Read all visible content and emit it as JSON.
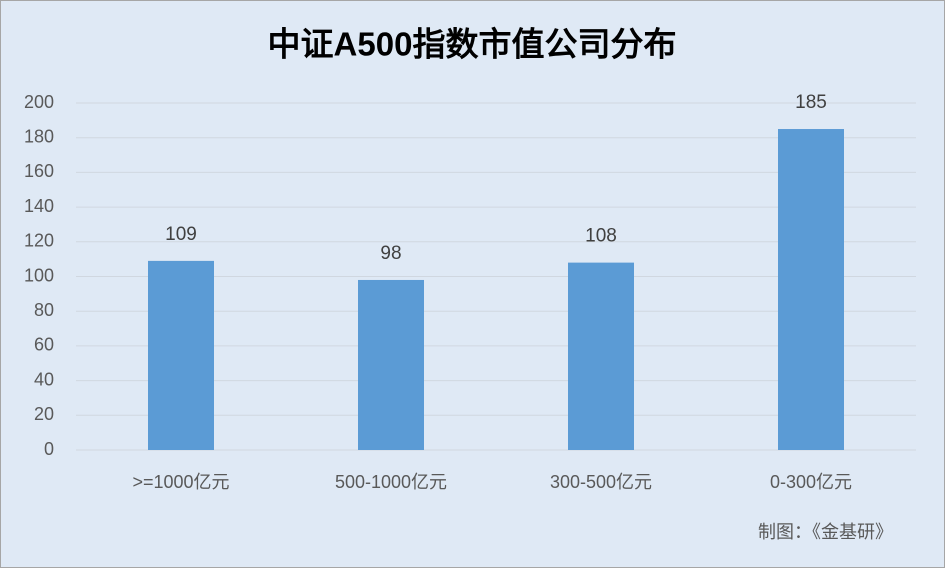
{
  "chart_data": {
    "type": "bar",
    "title": "中证A500指数市值公司分布",
    "categories": [
      ">=1000亿元",
      "500-1000亿元",
      "300-500亿元",
      "0-300亿元"
    ],
    "values": [
      109,
      98,
      108,
      185
    ],
    "color": "#5b9bd5",
    "ylim": [
      0,
      200
    ],
    "yticks": [
      0,
      20,
      40,
      60,
      80,
      100,
      120,
      140,
      160,
      180,
      200
    ],
    "grid": true,
    "annotation": "制图：《金基研》"
  }
}
